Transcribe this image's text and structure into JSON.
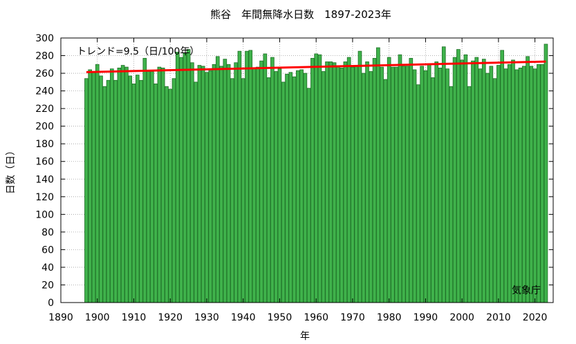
{
  "chart_data": {
    "type": "bar",
    "title": "熊谷　年間無降水日数　1897-2023年",
    "xlabel": "年",
    "ylabel": "日数（日）",
    "trend_label": "トレンド=9.5（日/100年）",
    "credit": "気象庁",
    "xlim": [
      1890,
      2025
    ],
    "ylim": [
      0,
      300
    ],
    "x_ticks": [
      1890,
      1900,
      1910,
      1920,
      1930,
      1940,
      1950,
      1960,
      1970,
      1980,
      1990,
      2000,
      2010,
      2020
    ],
    "y_ticks": [
      0,
      20,
      40,
      60,
      80,
      100,
      120,
      140,
      160,
      180,
      200,
      220,
      240,
      260,
      280,
      300
    ],
    "grid": true,
    "x_start": 1897,
    "values": [
      254,
      264,
      262,
      270,
      257,
      245,
      252,
      265,
      252,
      266,
      269,
      267,
      257,
      248,
      258,
      252,
      277,
      262,
      262,
      248,
      267,
      266,
      245,
      242,
      254,
      284,
      278,
      283,
      287,
      272,
      250,
      269,
      268,
      261,
      263,
      270,
      279,
      268,
      276,
      270,
      254,
      272,
      285,
      254,
      285,
      286,
      265,
      267,
      274,
      282,
      255,
      278,
      262,
      265,
      250,
      259,
      261,
      256,
      263,
      264,
      260,
      243,
      277,
      282,
      281,
      262,
      273,
      273,
      272,
      267,
      266,
      273,
      278,
      267,
      268,
      285,
      260,
      273,
      262,
      277,
      289,
      267,
      253,
      278,
      267,
      267,
      281,
      268,
      268,
      277,
      264,
      247,
      268,
      263,
      270,
      255,
      273,
      266,
      290,
      265,
      245,
      278,
      287,
      275,
      281,
      245,
      274,
      278,
      265,
      276,
      260,
      268,
      254,
      269,
      286,
      265,
      270,
      275,
      264,
      266,
      268,
      279,
      268,
      265,
      270,
      270,
      293
    ],
    "trend": {
      "start": 261.3,
      "end": 273.3
    },
    "bar_color": "#3fb24b",
    "bar_edge_color": "#1f6e27",
    "trend_color": "#ff0000"
  }
}
